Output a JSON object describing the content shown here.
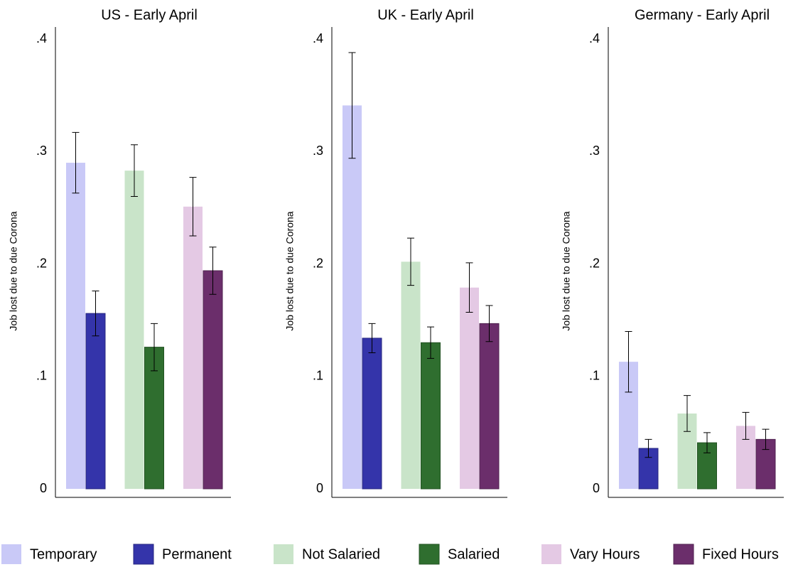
{
  "legend": {
    "items": [
      {
        "name": "Temporary",
        "color": "#c9c9f7"
      },
      {
        "name": "Permanent",
        "color": "#3434aa"
      },
      {
        "name": "Not Salaried",
        "color": "#c9e4c9"
      },
      {
        "name": "Salaried",
        "color": "#2f6e2f"
      },
      {
        "name": "Vary Hours",
        "color": "#e4c9e4"
      },
      {
        "name": "Fixed Hours",
        "color": "#6b2e6b"
      }
    ]
  },
  "chart_data": [
    {
      "type": "bar",
      "title": "US - Early April",
      "ylabel": "Job lost due to due Corona",
      "values": [
        0.29,
        0.156,
        0.283,
        0.126,
        0.251,
        0.194
      ],
      "errors": [
        0.027,
        0.02,
        0.023,
        0.021,
        0.026,
        0.021
      ],
      "ylim": [
        0,
        0.4
      ],
      "yticks": [
        0,
        {
          "value": 0.1,
          "label": ".1"
        },
        {
          "value": 0.2,
          "label": ".2"
        },
        {
          "value": 0.3,
          "label": ".3"
        },
        {
          "value": 0.4,
          "label": ".4"
        }
      ]
    },
    {
      "type": "bar",
      "title": "UK - Early April",
      "ylabel": "Job lost due to due Corona",
      "values": [
        0.341,
        0.134,
        0.202,
        0.13,
        0.179,
        0.147
      ],
      "errors": [
        0.047,
        0.013,
        0.021,
        0.014,
        0.022,
        0.016
      ],
      "ylim": [
        0,
        0.4
      ],
      "yticks": [
        0,
        {
          "value": 0.1,
          "label": ".1"
        },
        {
          "value": 0.2,
          "label": ".2"
        },
        {
          "value": 0.3,
          "label": ".3"
        },
        {
          "value": 0.4,
          "label": ".4"
        }
      ]
    },
    {
      "type": "bar",
      "title": "Germany - Early April",
      "ylabel": "Job lost due to due Corona",
      "values": [
        0.113,
        0.036,
        0.067,
        0.041,
        0.056,
        0.044
      ],
      "errors": [
        0.027,
        0.008,
        0.016,
        0.009,
        0.012,
        0.009
      ],
      "ylim": [
        0,
        0.4
      ],
      "yticks": [
        0,
        {
          "value": 0.1,
          "label": ".1"
        },
        {
          "value": 0.2,
          "label": ".2"
        },
        {
          "value": 0.3,
          "label": ".3"
        },
        {
          "value": 0.4,
          "label": ".4"
        }
      ]
    }
  ]
}
